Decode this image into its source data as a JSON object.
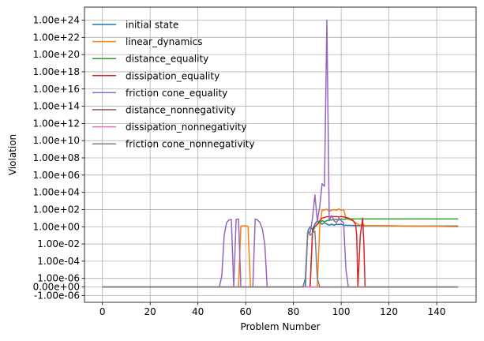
{
  "chart_data": {
    "type": "line",
    "xlabel": "Problem Number",
    "ylabel": "Violation",
    "xlim": [
      -7.5,
      156.5
    ],
    "x_ticks": [
      0,
      20,
      40,
      60,
      80,
      100,
      120,
      140
    ],
    "y_scale": "symlog",
    "y_linthresh": 1e-06,
    "y_ticks": [
      {
        "value": -1e-06,
        "label": "-1.00e-06"
      },
      {
        "value": 0,
        "label": "0.00e+00"
      },
      {
        "value": 1e-06,
        "label": "1.00e-06"
      },
      {
        "value": 0.0001,
        "label": "1.00e-04"
      },
      {
        "value": 0.01,
        "label": "1.00e-02"
      },
      {
        "value": 1,
        "label": "1.00e+00"
      },
      {
        "value": 100,
        "label": "1.00e+02"
      },
      {
        "value": 10000,
        "label": "1.00e+04"
      },
      {
        "value": 1000000,
        "label": "1.00e+06"
      },
      {
        "value": 100000000,
        "label": "1.00e+08"
      },
      {
        "value": 10000000000,
        "label": "1.00e+10"
      },
      {
        "value": 1000000000000,
        "label": "1.00e+12"
      },
      {
        "value": 100000000000000,
        "label": "1.00e+14"
      },
      {
        "value": 1e+16,
        "label": "1.00e+16"
      },
      {
        "value": 1e+18,
        "label": "1.00e+18"
      },
      {
        "value": 1e+20,
        "label": "1.00e+20"
      },
      {
        "value": 1e+22,
        "label": "1.00e+22"
      },
      {
        "value": 1e+24,
        "label": "1.00e+24"
      }
    ],
    "grid": true,
    "legend_position": "top-left",
    "series": [
      {
        "name": "initial state",
        "color": "#1f77b4",
        "points": [
          [
            0,
            0
          ],
          [
            85,
            0
          ],
          [
            86,
            0.3
          ],
          [
            87,
            1
          ],
          [
            88,
            0.5
          ],
          [
            89,
            2
          ],
          [
            90,
            5
          ],
          [
            91,
            3
          ],
          [
            92,
            2
          ],
          [
            93,
            3
          ],
          [
            94,
            2
          ],
          [
            95,
            1.5
          ],
          [
            96,
            2
          ],
          [
            97,
            1.5
          ],
          [
            98,
            2
          ],
          [
            99,
            1.8
          ],
          [
            100,
            2
          ],
          [
            101,
            1.5
          ],
          [
            102,
            1.5
          ],
          [
            105,
            1.4
          ],
          [
            110,
            1.3
          ],
          [
            120,
            1.3
          ],
          [
            130,
            1.2
          ],
          [
            140,
            1.2
          ],
          [
            149,
            1.2
          ]
        ]
      },
      {
        "name": "linear_dynamics",
        "color": "#ff7f0e",
        "points": [
          [
            0,
            0
          ],
          [
            57,
            0
          ],
          [
            58,
            1.2
          ],
          [
            60,
            1.3
          ],
          [
            61,
            1.1
          ],
          [
            62,
            0
          ],
          [
            90,
            0
          ],
          [
            91,
            1
          ],
          [
            92,
            80
          ],
          [
            93,
            90
          ],
          [
            94,
            110
          ],
          [
            95,
            60
          ],
          [
            96,
            80
          ],
          [
            97,
            100
          ],
          [
            98,
            80
          ],
          [
            99,
            120
          ],
          [
            100,
            80
          ],
          [
            101,
            100
          ],
          [
            102,
            10
          ],
          [
            103,
            8
          ],
          [
            104,
            6
          ],
          [
            105,
            5
          ],
          [
            106,
            3
          ],
          [
            107,
            2
          ],
          [
            108,
            1.5
          ],
          [
            109,
            2
          ],
          [
            110,
            1.4
          ],
          [
            120,
            1.3
          ],
          [
            130,
            1.2
          ],
          [
            140,
            1.1
          ],
          [
            149,
            1
          ]
        ]
      },
      {
        "name": "distance_equality",
        "color": "#2ca02c",
        "points": [
          [
            0,
            0
          ],
          [
            87,
            0
          ],
          [
            88,
            0.2
          ],
          [
            89,
            1
          ],
          [
            90,
            2
          ],
          [
            91,
            3
          ],
          [
            92,
            5
          ],
          [
            93,
            4
          ],
          [
            94,
            5
          ],
          [
            95,
            6
          ],
          [
            96,
            6
          ],
          [
            97,
            7
          ],
          [
            98,
            7
          ],
          [
            99,
            6
          ],
          [
            100,
            8
          ],
          [
            101,
            7
          ],
          [
            102,
            8
          ],
          [
            103,
            8
          ],
          [
            104,
            8
          ],
          [
            105,
            8
          ],
          [
            106,
            8
          ],
          [
            107,
            8
          ],
          [
            108,
            8
          ],
          [
            110,
            8
          ],
          [
            120,
            8
          ],
          [
            130,
            8
          ],
          [
            140,
            8
          ],
          [
            149,
            8
          ]
        ]
      },
      {
        "name": "dissipation_equality",
        "color": "#d62728",
        "points": [
          [
            0,
            0
          ],
          [
            87,
            0
          ],
          [
            88,
            0.5
          ],
          [
            89,
            1
          ],
          [
            90,
            2
          ],
          [
            91,
            5
          ],
          [
            92,
            10
          ],
          [
            93,
            12
          ],
          [
            94,
            15
          ],
          [
            95,
            14
          ],
          [
            96,
            16
          ],
          [
            97,
            15
          ],
          [
            98,
            15
          ],
          [
            99,
            14
          ],
          [
            100,
            15
          ],
          [
            101,
            14
          ],
          [
            102,
            12
          ],
          [
            103,
            10
          ],
          [
            104,
            8
          ],
          [
            105,
            5
          ],
          [
            106,
            2
          ],
          [
            106.5,
            0.1
          ],
          [
            107,
            0
          ],
          [
            108,
            0.1
          ],
          [
            109,
            10
          ],
          [
            109.5,
            0.01
          ],
          [
            110,
            0
          ],
          [
            149,
            0
          ]
        ]
      },
      {
        "name": "friction cone_equality",
        "color": "#9467bd",
        "points": [
          [
            0,
            0
          ],
          [
            49,
            0
          ],
          [
            50,
            2e-06
          ],
          [
            51,
            0.1
          ],
          [
            52,
            3
          ],
          [
            53,
            6
          ],
          [
            54,
            7
          ],
          [
            55,
            0
          ],
          [
            56,
            7
          ],
          [
            57,
            8
          ],
          [
            58,
            0
          ],
          [
            63,
            0
          ],
          [
            64,
            8
          ],
          [
            65,
            6
          ],
          [
            66,
            3
          ],
          [
            67,
            0.5
          ],
          [
            68,
            0.01
          ],
          [
            69,
            0
          ],
          [
            84,
            0
          ],
          [
            85,
            1e-06
          ],
          [
            86,
            0.3
          ],
          [
            87,
            0.2
          ],
          [
            88,
            10
          ],
          [
            89,
            5000
          ],
          [
            90,
            5
          ],
          [
            91,
            200
          ],
          [
            92,
            100000
          ],
          [
            93,
            50000
          ],
          [
            94,
            1e+24
          ],
          [
            95,
            5
          ],
          [
            96,
            20
          ],
          [
            97,
            5
          ],
          [
            98,
            3
          ],
          [
            99,
            10
          ],
          [
            100,
            5
          ],
          [
            101,
            3
          ],
          [
            102,
            1e-05
          ],
          [
            103,
            0
          ],
          [
            149,
            0
          ]
        ]
      },
      {
        "name": "distance_nonnegativity",
        "color": "#8c564b",
        "points": [
          [
            0,
            0
          ],
          [
            149,
            0
          ]
        ]
      },
      {
        "name": "dissipation_nonnegativity",
        "color": "#e377c2",
        "points": [
          [
            0,
            0
          ],
          [
            149,
            0
          ]
        ]
      },
      {
        "name": "friction cone_nonnegativity",
        "color": "#7f7f7f",
        "points": [
          [
            0,
            0
          ],
          [
            84,
            0
          ],
          [
            85,
            1e-06
          ],
          [
            86,
            0.3
          ],
          [
            87,
            0.1
          ],
          [
            88,
            0.2
          ],
          [
            89,
            0.3
          ],
          [
            90,
            1e-06
          ],
          [
            91,
            0
          ],
          [
            149,
            0
          ]
        ]
      }
    ]
  }
}
